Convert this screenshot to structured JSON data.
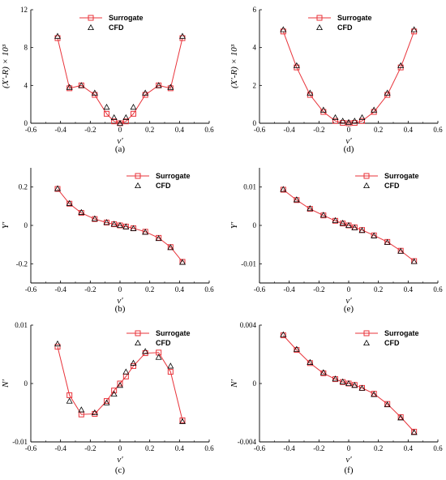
{
  "colors": {
    "surrogate": "#e8333a",
    "cfd_marker": "#000000",
    "axis": "#000000"
  },
  "legend_labels": {
    "surrogate": "Surrogate",
    "cfd": "CFD"
  },
  "chart_data": [
    {
      "id": "a",
      "type": "line",
      "caption": "(a)",
      "xlabel": "v′",
      "ylabel": "(X′-R) × 10³",
      "xlim": [
        -0.6,
        0.6
      ],
      "ylim": [
        0,
        12
      ],
      "xticks": [
        "-0.6",
        "-0.4",
        "-0.2",
        "0",
        "0.2",
        "0.4",
        "0.6"
      ],
      "yticks": [
        {
          "v": 0,
          "t": "0"
        },
        {
          "v": 4,
          "t": "4"
        },
        {
          "v": 8,
          "t": "8"
        },
        {
          "v": 12,
          "t": "12"
        }
      ],
      "legend_pos": "top-center",
      "series": [
        {
          "name": "Surrogate",
          "x": [
            -0.42,
            -0.34,
            -0.26,
            -0.17,
            -0.09,
            -0.04,
            0,
            0.04,
            0.09,
            0.17,
            0.26,
            0.34,
            0.42
          ],
          "y": [
            9.0,
            3.7,
            4.0,
            3.0,
            1.0,
            0.2,
            0.0,
            0.2,
            1.0,
            3.0,
            4.0,
            3.7,
            9.0
          ]
        },
        {
          "name": "CFD",
          "x": [
            -0.42,
            -0.34,
            -0.26,
            -0.17,
            -0.09,
            -0.04,
            0,
            0.04,
            0.09,
            0.17,
            0.26,
            0.34,
            0.42
          ],
          "y": [
            9.2,
            3.8,
            4.0,
            3.2,
            1.7,
            0.6,
            0.0,
            0.6,
            1.7,
            3.2,
            4.0,
            3.8,
            9.2
          ]
        }
      ]
    },
    {
      "id": "d",
      "type": "line",
      "caption": "(d)",
      "xlabel": "v′",
      "ylabel": "(X′-R) × 10³",
      "xlim": [
        -0.6,
        0.6
      ],
      "ylim": [
        0,
        6
      ],
      "xticks": [
        "-0.6",
        "-0.4",
        "-0.2",
        "0",
        "0.2",
        "0.4",
        "0.6"
      ],
      "yticks": [
        {
          "v": 0,
          "t": "0"
        },
        {
          "v": 2,
          "t": "2"
        },
        {
          "v": 4,
          "t": "4"
        },
        {
          "v": 6,
          "t": "6"
        }
      ],
      "legend_pos": "top-center",
      "series": [
        {
          "name": "Surrogate",
          "x": [
            -0.44,
            -0.35,
            -0.26,
            -0.17,
            -0.09,
            -0.04,
            0,
            0.04,
            0.09,
            0.17,
            0.26,
            0.35,
            0.44
          ],
          "y": [
            4.85,
            2.95,
            1.5,
            0.6,
            0.12,
            0.02,
            0.0,
            0.02,
            0.12,
            0.6,
            1.5,
            2.95,
            4.85
          ]
        },
        {
          "name": "CFD",
          "x": [
            -0.44,
            -0.35,
            -0.26,
            -0.17,
            -0.09,
            -0.04,
            0,
            0.04,
            0.09,
            0.17,
            0.26,
            0.35,
            0.44
          ],
          "y": [
            4.95,
            3.05,
            1.6,
            0.7,
            0.3,
            0.12,
            0.05,
            0.12,
            0.3,
            0.7,
            1.6,
            3.05,
            4.95
          ]
        }
      ]
    },
    {
      "id": "b",
      "type": "line",
      "caption": "(b)",
      "xlabel": "v′",
      "ylabel": "Y′",
      "xlim": [
        -0.6,
        0.6
      ],
      "ylim": [
        -0.3,
        0.3
      ],
      "xticks": [
        "-0.6",
        "-0.4",
        "-0.2",
        "0",
        "0.2",
        "0.4",
        "0.6"
      ],
      "yticks": [
        {
          "v": -0.2,
          "t": "-0.2"
        },
        {
          "v": 0,
          "t": "0"
        },
        {
          "v": 0.2,
          "t": "0.2"
        }
      ],
      "legend_pos": "top-right",
      "series": [
        {
          "name": "Surrogate",
          "x": [
            -0.42,
            -0.34,
            -0.26,
            -0.17,
            -0.09,
            -0.04,
            0,
            0.04,
            0.09,
            0.17,
            0.26,
            0.34,
            0.42
          ],
          "y": [
            0.19,
            0.113,
            0.065,
            0.033,
            0.015,
            0.006,
            0.0,
            -0.006,
            -0.015,
            -0.033,
            -0.065,
            -0.113,
            -0.19
          ]
        },
        {
          "name": "CFD",
          "x": [
            -0.42,
            -0.34,
            -0.26,
            -0.17,
            -0.09,
            -0.04,
            0,
            0.04,
            0.09,
            0.17,
            0.26,
            0.34,
            0.42
          ],
          "y": [
            0.192,
            0.115,
            0.068,
            0.035,
            0.016,
            0.007,
            0.0,
            -0.007,
            -0.016,
            -0.035,
            -0.068,
            -0.115,
            -0.192
          ]
        }
      ]
    },
    {
      "id": "e",
      "type": "line",
      "caption": "(e)",
      "xlabel": "v′",
      "ylabel": "Y′",
      "xlim": [
        -0.6,
        0.6
      ],
      "ylim": [
        -0.015,
        0.015
      ],
      "xticks": [
        "-0.6",
        "-0.4",
        "-0.2",
        "0",
        "0.2",
        "0.4",
        "0.6"
      ],
      "yticks": [
        {
          "v": -0.01,
          "t": "-0.01"
        },
        {
          "v": 0,
          "t": "0"
        },
        {
          "v": 0.01,
          "t": "0.01"
        }
      ],
      "legend_pos": "top-right",
      "series": [
        {
          "name": "Surrogate",
          "x": [
            -0.44,
            -0.35,
            -0.26,
            -0.17,
            -0.09,
            -0.04,
            0,
            0.04,
            0.09,
            0.17,
            0.26,
            0.35,
            0.44
          ],
          "y": [
            0.0093,
            0.0066,
            0.0043,
            0.0026,
            0.0012,
            0.0005,
            0.0,
            -0.0005,
            -0.0012,
            -0.0026,
            -0.0043,
            -0.0066,
            -0.0093
          ]
        },
        {
          "name": "CFD",
          "x": [
            -0.44,
            -0.35,
            -0.26,
            -0.17,
            -0.09,
            -0.04,
            0,
            0.04,
            0.09,
            0.17,
            0.26,
            0.35,
            0.44
          ],
          "y": [
            0.0094,
            0.0067,
            0.0044,
            0.0027,
            0.0013,
            0.0006,
            0.0,
            -0.0006,
            -0.0013,
            -0.0027,
            -0.0044,
            -0.0067,
            -0.0094
          ]
        }
      ]
    },
    {
      "id": "c",
      "type": "line",
      "caption": "(c)",
      "xlabel": "v′",
      "ylabel": "N′",
      "xlim": [
        -0.6,
        0.6
      ],
      "ylim": [
        -0.01,
        0.01
      ],
      "xticks": [
        "-0.6",
        "-0.4",
        "-0.2",
        "0",
        "0.2",
        "0.4",
        "0.6"
      ],
      "yticks": [
        {
          "v": -0.01,
          "t": "-0.01"
        },
        {
          "v": 0,
          "t": "0"
        },
        {
          "v": 0.01,
          "t": "0.01"
        }
      ],
      "legend_pos": "top-right",
      "series": [
        {
          "name": "Surrogate",
          "x": [
            -0.42,
            -0.34,
            -0.26,
            -0.17,
            -0.09,
            -0.04,
            0,
            0.04,
            0.09,
            0.17,
            0.26,
            0.34,
            0.42
          ],
          "y": [
            0.0063,
            -0.002,
            -0.0053,
            -0.0052,
            -0.003,
            -0.0012,
            0.0,
            0.0012,
            0.003,
            0.0052,
            0.0053,
            0.002,
            -0.0063
          ]
        },
        {
          "name": "CFD",
          "x": [
            -0.42,
            -0.34,
            -0.26,
            -0.17,
            -0.09,
            -0.04,
            0,
            0.04,
            0.09,
            0.17,
            0.26,
            0.34,
            0.42
          ],
          "y": [
            0.0068,
            -0.003,
            -0.0045,
            -0.005,
            -0.0033,
            -0.0018,
            -0.0003,
            0.002,
            0.0035,
            0.0055,
            0.0045,
            0.003,
            -0.0065
          ]
        }
      ]
    },
    {
      "id": "f",
      "type": "line",
      "caption": "(f)",
      "xlabel": "v′",
      "ylabel": "N′",
      "xlim": [
        -0.6,
        0.6
      ],
      "ylim": [
        -0.004,
        0.004
      ],
      "xticks": [
        "-0.6",
        "-0.4",
        "-0.2",
        "0",
        "0.2",
        "0.4",
        "0.6"
      ],
      "yticks": [
        {
          "v": -0.004,
          "t": "-0.004"
        },
        {
          "v": 0,
          "t": "0"
        },
        {
          "v": 0.004,
          "t": "0.004"
        }
      ],
      "legend_pos": "top-right",
      "series": [
        {
          "name": "Surrogate",
          "x": [
            -0.44,
            -0.35,
            -0.26,
            -0.17,
            -0.09,
            -0.04,
            0,
            0.04,
            0.09,
            0.17,
            0.26,
            0.35,
            0.44
          ],
          "y": [
            0.0033,
            0.0023,
            0.0014,
            0.0007,
            0.0003,
            0.0001,
            0.0,
            -0.0001,
            -0.0003,
            -0.0007,
            -0.0014,
            -0.0023,
            -0.0033
          ]
        },
        {
          "name": "CFD",
          "x": [
            -0.44,
            -0.35,
            -0.26,
            -0.17,
            -0.09,
            -0.04,
            0,
            0.04,
            0.09,
            0.17,
            0.26,
            0.35,
            0.44
          ],
          "y": [
            0.00335,
            0.00235,
            0.00145,
            0.00075,
            0.00032,
            0.00012,
            0.0,
            -0.00012,
            -0.00032,
            -0.00075,
            -0.00145,
            -0.00235,
            -0.00335
          ]
        }
      ]
    }
  ]
}
